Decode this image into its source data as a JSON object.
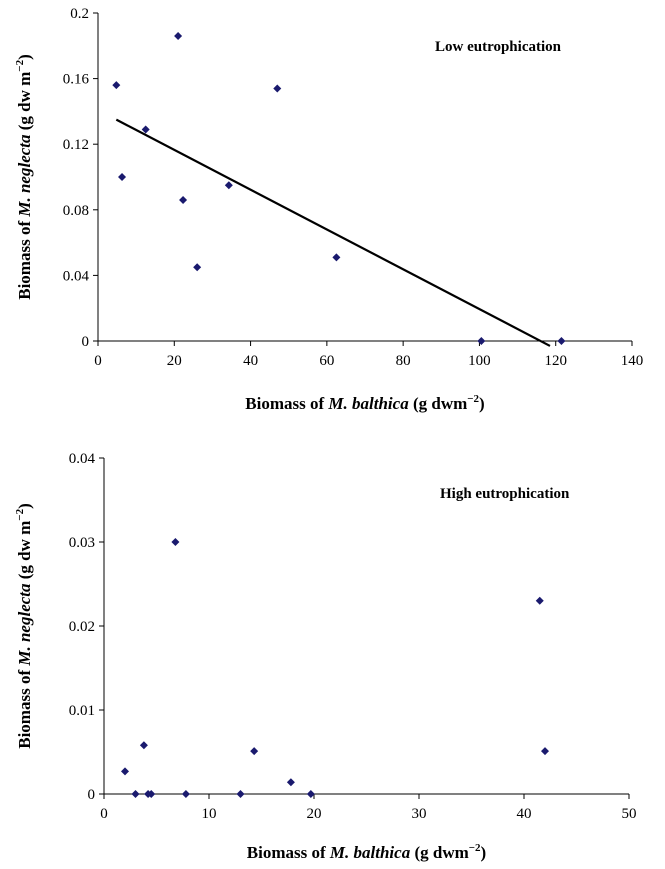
{
  "chart_data": [
    {
      "type": "scatter",
      "annotation": "Low eutrophication",
      "xlabel": {
        "pre": "Biomass of ",
        "italic": "M. balthica",
        "post": " (g dwm",
        "sup": "−2",
        "close": ")"
      },
      "ylabel": {
        "pre": "Biomass of ",
        "italic": "M. neglecta",
        "post": " (g dw m",
        "sup": "−2",
        "close": ")"
      },
      "xlim": [
        0,
        140
      ],
      "ylim": [
        0,
        0.2
      ],
      "xticks": [
        "0",
        "20",
        "40",
        "60",
        "80",
        "100",
        "120",
        "140"
      ],
      "yticks": [
        "0",
        "0.04",
        "0.08",
        "0.12",
        "0.16",
        "0.2"
      ],
      "grid": false,
      "marker_color": "#1a1a6e",
      "points": [
        {
          "x": 4.8,
          "y": 0.156
        },
        {
          "x": 6.3,
          "y": 0.1
        },
        {
          "x": 12.5,
          "y": 0.129
        },
        {
          "x": 21.0,
          "y": 0.186
        },
        {
          "x": 22.3,
          "y": 0.086
        },
        {
          "x": 26.0,
          "y": 0.045
        },
        {
          "x": 34.3,
          "y": 0.095
        },
        {
          "x": 47.0,
          "y": 0.154
        },
        {
          "x": 62.5,
          "y": 0.051
        },
        {
          "x": 100.5,
          "y": 0.0
        },
        {
          "x": 121.5,
          "y": 0.0
        }
      ],
      "trendline": {
        "x": [
          4.8,
          118.5
        ],
        "y": [
          0.135,
          -0.003
        ]
      }
    },
    {
      "type": "scatter",
      "annotation": "High eutrophication",
      "xlabel": {
        "pre": "Biomass of ",
        "italic": "M. balthica",
        "post": " (g dwm",
        "sup": "−2",
        "close": ")"
      },
      "ylabel": {
        "pre": "Biomass of ",
        "italic": "M. neglecta",
        "post": " (g dw m",
        "sup": "−2",
        "close": ")"
      },
      "xlim": [
        0,
        50
      ],
      "ylim": [
        0,
        0.04
      ],
      "xticks": [
        "0",
        "10",
        "20",
        "30",
        "40",
        "50"
      ],
      "yticks": [
        "0",
        "0.01",
        "0.02",
        "0.03",
        "0.04"
      ],
      "grid": false,
      "marker_color": "#1a1a6e",
      "points": [
        {
          "x": 2.0,
          "y": 0.0027
        },
        {
          "x": 3.0,
          "y": 0.0
        },
        {
          "x": 3.8,
          "y": 0.0058
        },
        {
          "x": 4.2,
          "y": 0.0
        },
        {
          "x": 4.5,
          "y": 0.0
        },
        {
          "x": 6.8,
          "y": 0.03
        },
        {
          "x": 7.8,
          "y": 0.0
        },
        {
          "x": 13.0,
          "y": 0.0
        },
        {
          "x": 14.3,
          "y": 0.0051
        },
        {
          "x": 17.8,
          "y": 0.0014
        },
        {
          "x": 19.7,
          "y": 0.0
        },
        {
          "x": 41.5,
          "y": 0.023
        },
        {
          "x": 42.0,
          "y": 0.0051
        }
      ]
    }
  ]
}
